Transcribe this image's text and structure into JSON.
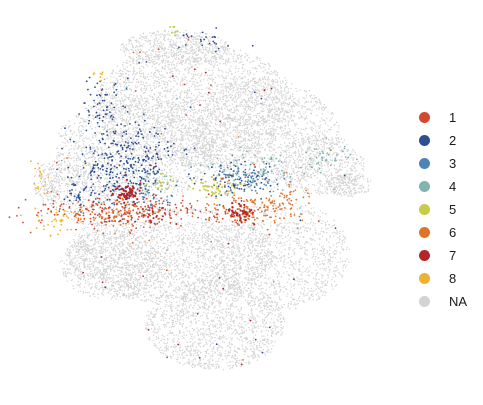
{
  "chart_data": {
    "type": "scatter",
    "title": "",
    "xlabel": "",
    "ylabel": "",
    "grid": false,
    "axes_visible": false,
    "legend_position": "right",
    "series": [
      {
        "name": "1",
        "color": "#d1492e"
      },
      {
        "name": "2",
        "color": "#2c4f94"
      },
      {
        "name": "3",
        "color": "#4f85b5"
      },
      {
        "name": "4",
        "color": "#7fb5ae"
      },
      {
        "name": "5",
        "color": "#c8ca4a"
      },
      {
        "name": "6",
        "color": "#df7429"
      },
      {
        "name": "7",
        "color": "#b32528"
      },
      {
        "name": "8",
        "color": "#edb32c"
      },
      {
        "name": "NA",
        "color": "#d3d3d3"
      }
    ]
  }
}
